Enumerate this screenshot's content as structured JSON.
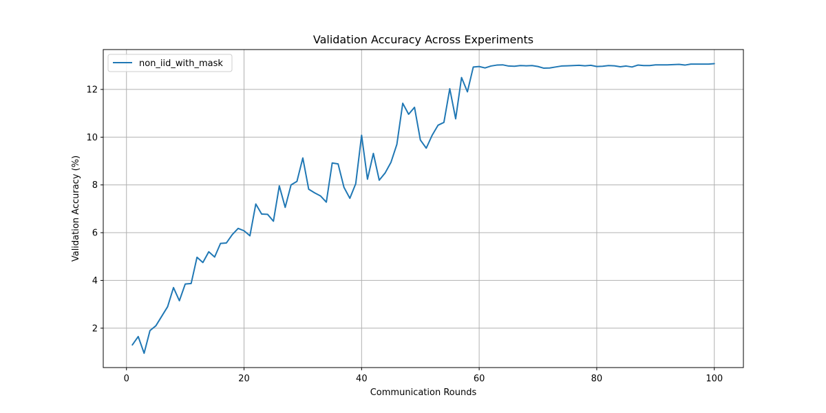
{
  "chart_data": {
    "type": "line",
    "title": "Validation Accuracy Across Experiments",
    "xlabel": "Communication Rounds",
    "ylabel": "Validation Accuracy (%)",
    "xlim": [
      -3.95,
      104.95
    ],
    "ylim": [
      0.35,
      13.67
    ],
    "xticks": [
      0,
      20,
      40,
      60,
      80,
      100
    ],
    "yticks": [
      2,
      4,
      6,
      8,
      10,
      12
    ],
    "grid": true,
    "legend_position": "top-left",
    "series": [
      {
        "name": "non_iid_with_mask",
        "color": "#1f77b4",
        "x": [
          1,
          2,
          3,
          4,
          5,
          6,
          7,
          8,
          9,
          10,
          11,
          12,
          13,
          14,
          15,
          16,
          17,
          18,
          19,
          20,
          21,
          22,
          23,
          24,
          25,
          26,
          27,
          28,
          29,
          30,
          31,
          32,
          33,
          34,
          35,
          36,
          37,
          38,
          39,
          40,
          41,
          42,
          43,
          44,
          45,
          46,
          47,
          48,
          49,
          50,
          51,
          52,
          53,
          54,
          55,
          56,
          57,
          58,
          59,
          60,
          61,
          62,
          63,
          64,
          65,
          66,
          67,
          68,
          69,
          70,
          71,
          72,
          73,
          74,
          75,
          76,
          77,
          78,
          79,
          80,
          81,
          82,
          83,
          84,
          85,
          86,
          87,
          88,
          89,
          90,
          91,
          92,
          93,
          94,
          95,
          96,
          97,
          98,
          99,
          100
        ],
        "y": [
          1.3,
          1.65,
          0.95,
          1.9,
          2.1,
          2.5,
          2.9,
          3.7,
          3.15,
          3.85,
          3.87,
          4.97,
          4.75,
          5.2,
          4.98,
          5.55,
          5.57,
          5.92,
          6.18,
          6.08,
          5.87,
          7.2,
          6.78,
          6.77,
          6.48,
          7.96,
          7.06,
          8.0,
          8.15,
          9.13,
          7.82,
          7.67,
          7.54,
          7.28,
          8.92,
          8.88,
          7.9,
          7.44,
          8.05,
          10.08,
          8.24,
          9.32,
          8.2,
          8.5,
          8.95,
          9.7,
          11.42,
          10.96,
          11.25,
          9.88,
          9.54,
          10.08,
          10.5,
          10.62,
          12.03,
          10.77,
          12.5,
          11.9,
          12.94,
          12.96,
          12.9,
          12.98,
          13.02,
          13.03,
          12.98,
          12.97,
          13.0,
          12.99,
          13.0,
          12.96,
          12.89,
          12.9,
          12.94,
          12.98,
          12.99,
          13.0,
          13.01,
          12.99,
          13.01,
          12.96,
          12.97,
          13.0,
          12.99,
          12.95,
          12.98,
          12.94,
          13.02,
          13.0,
          13.0,
          13.03,
          13.03,
          13.03,
          13.04,
          13.05,
          13.02,
          13.06,
          13.06,
          13.06,
          13.06,
          13.08
        ]
      }
    ]
  }
}
